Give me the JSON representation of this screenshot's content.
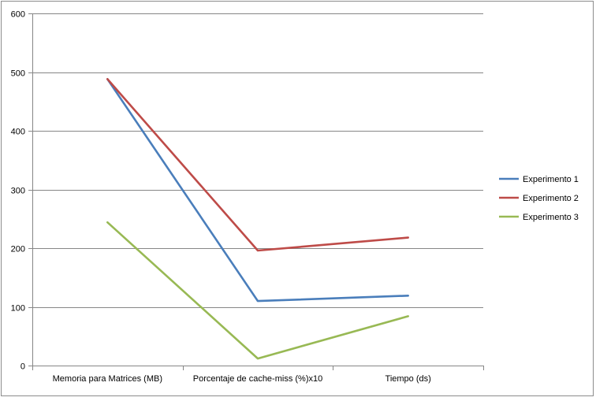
{
  "chart_data": {
    "type": "line",
    "title": "",
    "xlabel": "",
    "ylabel": "",
    "categories": [
      "Memoria para Matrices (MB)",
      "Porcentaje de cache-miss (%)x10",
      "Tiempo (ds)"
    ],
    "ylim": [
      0,
      600
    ],
    "yticks": [
      0,
      100,
      200,
      300,
      400,
      500,
      600
    ],
    "grid": true,
    "legend_position": "right",
    "series": [
      {
        "name": "Experimento 1",
        "color": "#4a7ebb",
        "values": [
          488,
          110,
          119
        ]
      },
      {
        "name": "Experimento 2",
        "color": "#be4b48",
        "values": [
          488,
          196,
          218
        ]
      },
      {
        "name": "Experimento 3",
        "color": "#98b954",
        "values": [
          244,
          12,
          84
        ]
      }
    ]
  }
}
